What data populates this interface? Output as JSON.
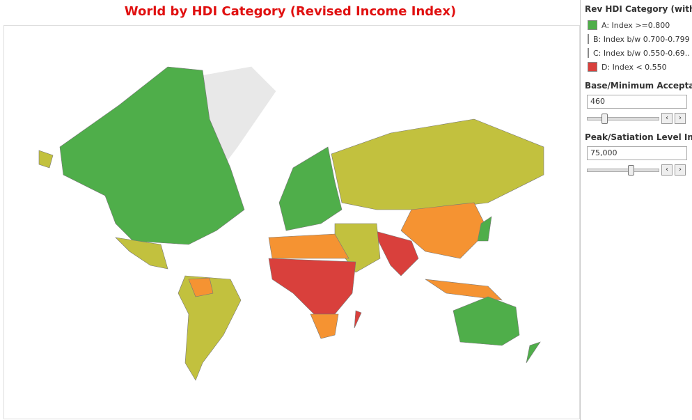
{
  "header": {
    "title": "World by HDI Category (Revised Income Index)"
  },
  "legend": {
    "title": "Rev HDI Category (with ..",
    "items": [
      {
        "label": "A: Index >=0.800",
        "color": "#4fae4a"
      },
      {
        "label": "B: Index b/w 0.700-0.799",
        "color": "#c2c13e"
      },
      {
        "label": "C: Index b/w 0.550-0.69..",
        "color": "#f59332"
      },
      {
        "label": "D: Index < 0.550",
        "color": "#d9403c"
      }
    ]
  },
  "parameters": [
    {
      "label": "Base/Minimum Acceptab..",
      "value": "460"
    },
    {
      "label": "Peak/Satiation Level Inc..",
      "value": "75,000"
    }
  ]
}
